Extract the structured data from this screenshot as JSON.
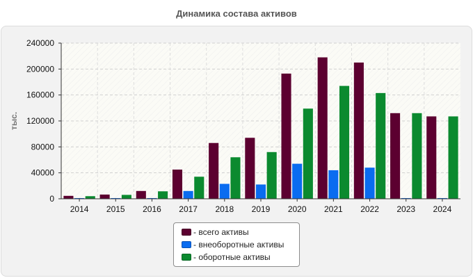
{
  "title": "Динамика состава активов",
  "colors": {
    "total": "#5c0030",
    "noncurrent": "#0a6cf0",
    "current": "#0b8a2f"
  },
  "legend_placement": "bottom-center",
  "chart_data": {
    "type": "bar",
    "title": "Динамика состава активов",
    "xlabel": "",
    "ylabel": "тыс.",
    "ylim": [
      0,
      240000
    ],
    "yticks": [
      0,
      40000,
      80000,
      120000,
      160000,
      200000,
      240000
    ],
    "grid": true,
    "categories": [
      "2014",
      "2015",
      "2016",
      "2017",
      "2018",
      "2019",
      "2020",
      "2021",
      "2022",
      "2023",
      "2024"
    ],
    "series": [
      {
        "name": "- всего активы",
        "color": "#5c0030",
        "values": [
          4500,
          6500,
          12000,
          45000,
          86000,
          94000,
          193000,
          218000,
          210000,
          132000,
          127000
        ]
      },
      {
        "name": "- внеоборотные активы",
        "color": "#0a6cf0",
        "values": [
          500,
          500,
          1000,
          12000,
          23000,
          22000,
          54000,
          44000,
          48000,
          1000,
          1000
        ]
      },
      {
        "name": "- оборотные активы",
        "color": "#0b8a2f",
        "values": [
          4000,
          6000,
          11500,
          34000,
          64000,
          72000,
          139000,
          174000,
          163000,
          132000,
          127000
        ]
      }
    ]
  }
}
